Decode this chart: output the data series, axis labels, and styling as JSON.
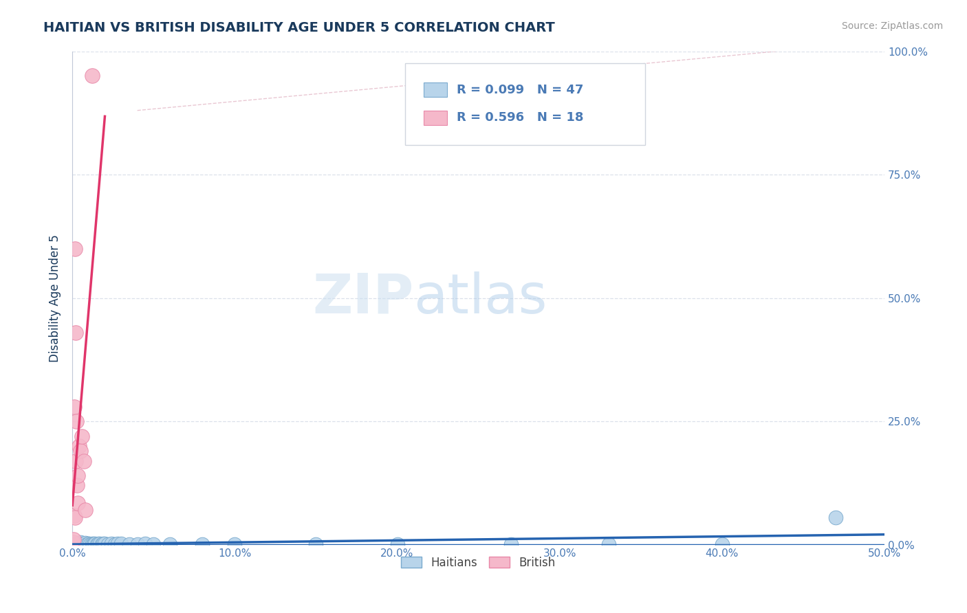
{
  "title": "HAITIAN VS BRITISH DISABILITY AGE UNDER 5 CORRELATION CHART",
  "source": "Source: ZipAtlas.com",
  "ylabel": "Disability Age Under 5",
  "xlim": [
    0.0,
    0.5
  ],
  "ylim": [
    0.0,
    1.0
  ],
  "xticks": [
    0.0,
    0.1,
    0.2,
    0.3,
    0.4,
    0.5
  ],
  "yticks": [
    0.0,
    0.25,
    0.5,
    0.75,
    1.0
  ],
  "xticklabels": [
    "0.0%",
    "10.0%",
    "20.0%",
    "30.0%",
    "40.0%",
    "50.0%"
  ],
  "yticklabels_left": [
    "",
    "",
    "",
    "",
    ""
  ],
  "yticklabels_right": [
    "0.0%",
    "25.0%",
    "50.0%",
    "75.0%",
    "100.0%"
  ],
  "haitian_color": "#b8d4ea",
  "british_color": "#f5b8ca",
  "haitian_edge_color": "#7aaace",
  "british_edge_color": "#e888a8",
  "trend_haitian_color": "#2563b0",
  "trend_british_color": "#e0356a",
  "trend_ref_color": "#c8c8c8",
  "title_color": "#1a3a5c",
  "axis_color": "#4a7ab5",
  "tick_color": "#4a7ab5",
  "background_color": "#ffffff",
  "watermark_zip": "ZIP",
  "watermark_atlas": "atlas",
  "R_haitian": 0.099,
  "N_haitian": 47,
  "R_british": 0.596,
  "N_british": 18,
  "haitian_x": [
    0.001,
    0.0015,
    0.002,
    0.0025,
    0.003,
    0.003,
    0.004,
    0.004,
    0.005,
    0.005,
    0.006,
    0.007,
    0.007,
    0.008,
    0.008,
    0.009,
    0.01,
    0.01,
    0.011,
    0.012,
    0.013,
    0.013,
    0.014,
    0.015,
    0.016,
    0.017,
    0.018,
    0.019,
    0.02,
    0.022,
    0.024,
    0.026,
    0.028,
    0.03,
    0.035,
    0.04,
    0.045,
    0.05,
    0.06,
    0.08,
    0.1,
    0.15,
    0.2,
    0.27,
    0.33,
    0.4,
    0.47
  ],
  "haitian_y": [
    0.002,
    0.002,
    0.003,
    0.002,
    0.001,
    0.003,
    0.002,
    0.004,
    0.003,
    0.005,
    0.001,
    0.002,
    0.003,
    0.003,
    0.004,
    0.001,
    0.002,
    0.003,
    0.001,
    0.002,
    0.003,
    0.001,
    0.002,
    0.001,
    0.002,
    0.002,
    0.001,
    0.003,
    0.002,
    0.001,
    0.002,
    0.001,
    0.002,
    0.003,
    0.001,
    0.001,
    0.002,
    0.001,
    0.001,
    0.001,
    0.001,
    0.001,
    0.001,
    0.001,
    0.001,
    0.001,
    0.055
  ],
  "british_x": [
    0.0005,
    0.0008,
    0.001,
    0.0012,
    0.0015,
    0.0018,
    0.002,
    0.0022,
    0.0025,
    0.003,
    0.0032,
    0.0035,
    0.004,
    0.005,
    0.006,
    0.007,
    0.008,
    0.012
  ],
  "british_y": [
    0.005,
    0.01,
    0.28,
    0.06,
    0.6,
    0.055,
    0.43,
    0.17,
    0.25,
    0.12,
    0.14,
    0.085,
    0.2,
    0.19,
    0.22,
    0.17,
    0.07,
    0.95
  ],
  "ref_line_x": [
    0.045,
    0.5
  ],
  "ref_line_y": [
    0.9,
    1.0
  ]
}
